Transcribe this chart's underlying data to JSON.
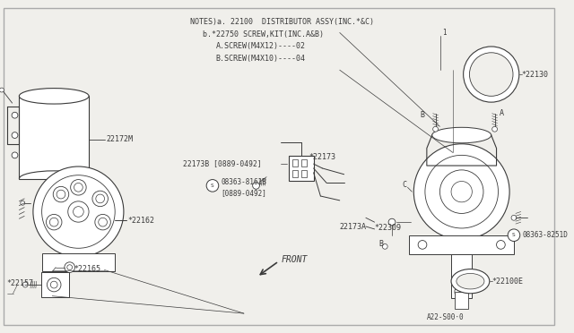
{
  "bg_color": "#f0efeb",
  "line_color": "#3a3a3a",
  "notes_line1": "NOTES)a. 22100  DISTRIBUTOR ASSY(INC.*&C)",
  "notes_line2": "b.*22750 SCREW,KIT(INC.A&B)",
  "notes_line3": "A.SCREW(M4X12)----02",
  "notes_line4": "B.SCREW(M4X10)----04",
  "footer_text": "A22-S00·0",
  "border_color": "#aaaaaa"
}
